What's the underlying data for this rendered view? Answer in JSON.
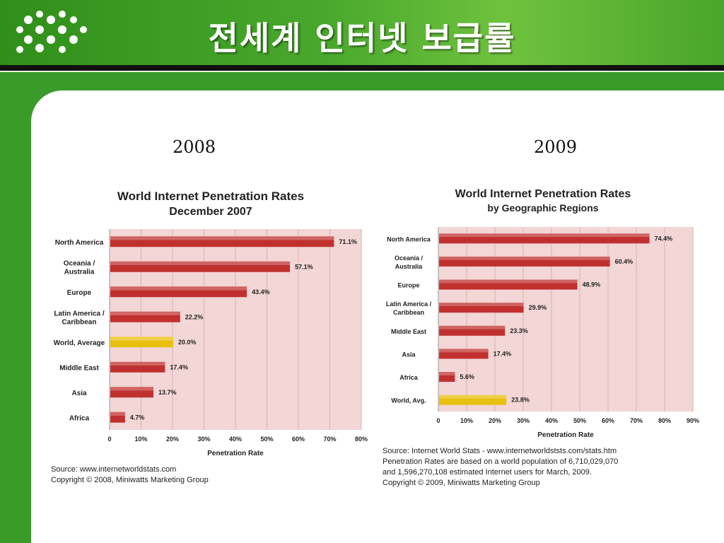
{
  "slide": {
    "title": "전세계 인터넷 보급률"
  },
  "years": {
    "left": "2008",
    "right": "2009"
  },
  "colors": {
    "bar": "#c0302f",
    "highlight": "#e8c010",
    "plot_bg": "#f3d6d6",
    "grid": "#dcb0b0"
  },
  "chart_data": [
    {
      "type": "bar",
      "orientation": "horizontal",
      "title": "World Internet Penetration Rates",
      "subtitle": "December 2007",
      "xlabel": "Penetration Rate",
      "ylabel": "",
      "categories": [
        "North America",
        "Oceania  /|Australia",
        "Europe",
        "Latin America /|Caribbean",
        "World, Average",
        "Middle East",
        "Asia",
        "Africa"
      ],
      "values": [
        71.1,
        57.1,
        43.4,
        22.2,
        20.0,
        17.4,
        13.7,
        4.7
      ],
      "value_labels": [
        "71.1%",
        "57.1%",
        "43.4%",
        "22.2%",
        "20.0%",
        "17.4%",
        "13.7%",
        "4.7%"
      ],
      "highlight": [
        "World, Average"
      ],
      "xlim": [
        0,
        80
      ],
      "xticks": [
        "0",
        "10%",
        "20%",
        "30%",
        "40%",
        "50%",
        "60%",
        "70%",
        "80%"
      ],
      "grid": true,
      "source": [
        "Source: www.internetworldstats.com",
        "Copyright © 2008, Miniwatts Marketing Group"
      ]
    },
    {
      "type": "bar",
      "orientation": "horizontal",
      "title": "World Internet Penetration Rates",
      "subtitle": "by Geographic Regions",
      "xlabel": "Penetration Rate",
      "ylabel": "",
      "categories": [
        "North America",
        "Oceania  /|Australia",
        "Europe",
        "Latin America /|Caribbean",
        "Middle East",
        "Asia",
        "Africa",
        "World, Avg."
      ],
      "values": [
        74.4,
        60.4,
        48.9,
        29.9,
        23.3,
        17.4,
        5.6,
        23.8
      ],
      "value_labels": [
        "74.4%",
        "60.4%",
        "48.9%",
        "29.9%",
        "23.3%",
        "17.4%",
        "5.6%",
        "23.8%"
      ],
      "highlight": [
        "World, Avg."
      ],
      "xlim": [
        0,
        90
      ],
      "xticks": [
        "0",
        "10%",
        "20%",
        "30%",
        "40%",
        "50%",
        "60%",
        "70%",
        "80%",
        "90%"
      ],
      "grid": true,
      "source": [
        "Source: Internet World Stats - www.internetworldststs.com/stats.htm",
        "Penetration Rates are based on a world population of 6,710,029,070",
        "and 1,596,270,108 estimated Internet users for March, 2009.",
        "Copyright © 2009, Miniwatts Marketing Group"
      ]
    }
  ]
}
